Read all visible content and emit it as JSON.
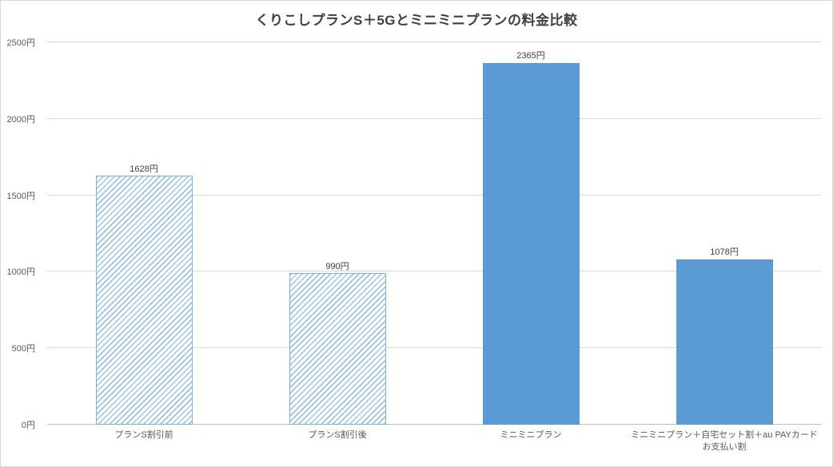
{
  "chart_data": {
    "type": "bar",
    "title": "くりこしプランS＋5Gとミニミニプランの料金比較",
    "categories": [
      "プランS割引前",
      "プランS割引後",
      "ミニミニプラン",
      "ミニミニプラン＋自宅セット割＋au PAYカードお支払い割"
    ],
    "values": [
      1628,
      990,
      2365,
      1078
    ],
    "value_labels": [
      "1628円",
      "990円",
      "2365円",
      "1078円"
    ],
    "bar_styles": [
      "hatch",
      "hatch",
      "solid",
      "solid"
    ],
    "unit": "円",
    "ylim": [
      0,
      2500
    ],
    "ytick_interval": 500,
    "ytick_labels": [
      "0円",
      "500円",
      "1000円",
      "1500円",
      "2000円",
      "2500円"
    ],
    "grid": true,
    "legend": "none",
    "colors": {
      "solid_fill": "#5B9BD5",
      "hatch_stripe": "#9DC3E6",
      "hatch_background": "#FFFFFF",
      "bar_border": "#7FAFDF",
      "gridline": "#D9D9D9",
      "axis_line": "#BFBFBF",
      "title_text": "#404040",
      "tick_text": "#595959"
    }
  }
}
